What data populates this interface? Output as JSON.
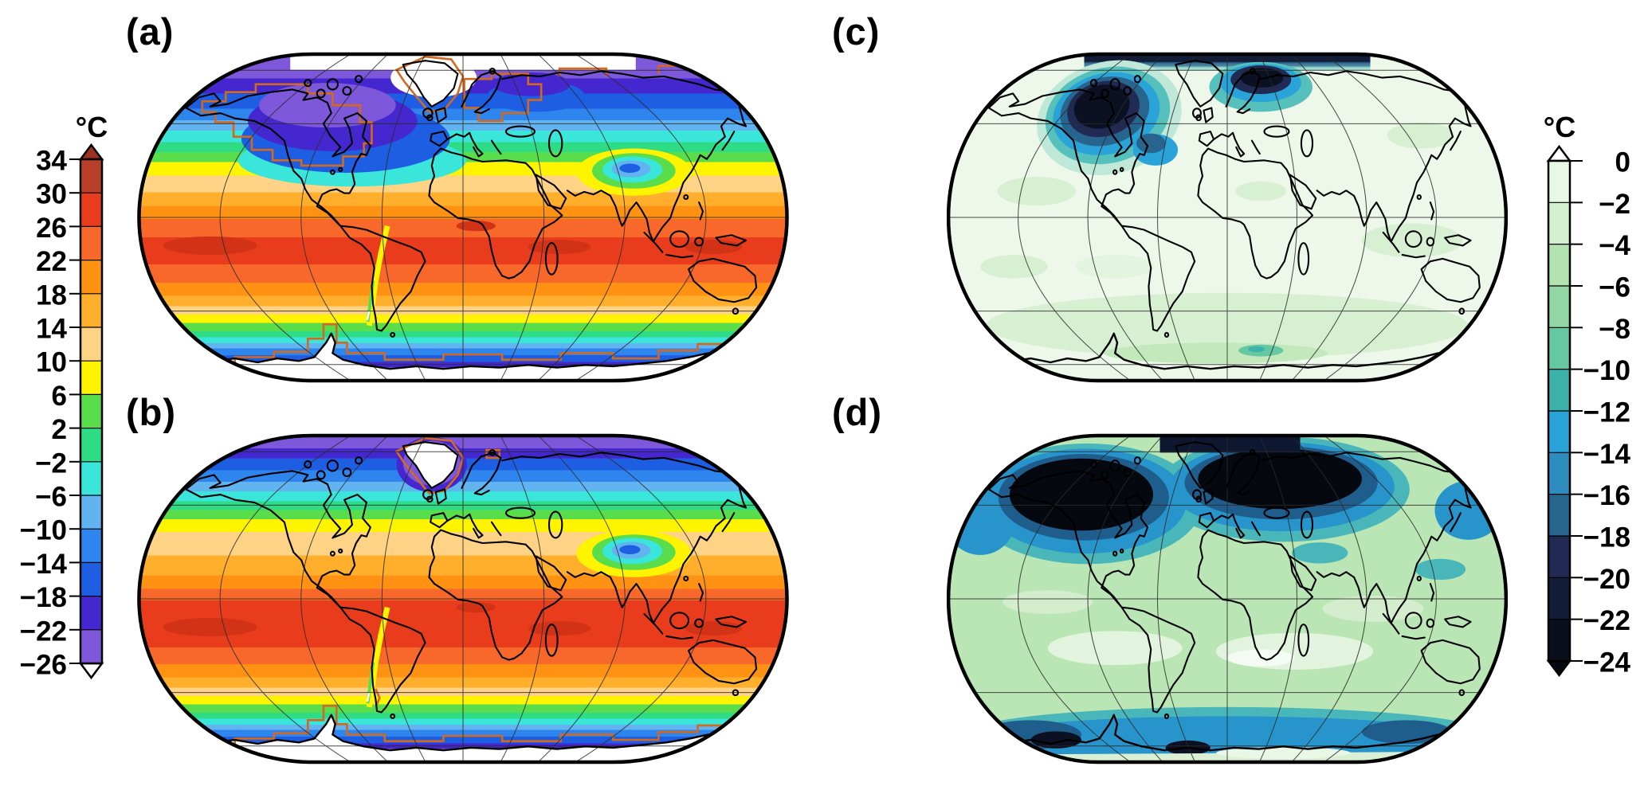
{
  "figure": {
    "background_color": "#ffffff",
    "ice_margin_contour_color": "#d2691e",
    "coastline_color": "#000000",
    "graticule_color": "#2b2b2b"
  },
  "panels": [
    {
      "id": "a",
      "label": "(a)"
    },
    {
      "id": "b",
      "label": "(b)"
    },
    {
      "id": "c",
      "label": "(c)"
    },
    {
      "id": "d",
      "label": "(d)"
    }
  ],
  "colorbar_left": {
    "title": "°C",
    "tick_labels": [
      "34",
      "30",
      "26",
      "22",
      "18",
      "14",
      "10",
      "6",
      "2",
      "−2",
      "−6",
      "−10",
      "−14",
      "−18",
      "−22",
      "−26"
    ],
    "segment_colors": [
      "#b8402a",
      "#e93c1d",
      "#f9682b",
      "#ff9113",
      "#ffaf2b",
      "#ffd386",
      "#fef400",
      "#59dd4b",
      "#2edc86",
      "#3ae5da",
      "#62b4f1",
      "#2f85ee",
      "#1d5ee2",
      "#4527cf",
      "#7e58da"
    ],
    "over_color": "#9d3220",
    "under_color": "#ffffff"
  },
  "colorbar_right": {
    "title": "°C",
    "tick_labels": [
      "0",
      "−2",
      "−4",
      "−6",
      "−8",
      "−10",
      "−12",
      "−14",
      "−16",
      "−18",
      "−20",
      "−22",
      "−24"
    ],
    "segment_colors": [
      "#e9f7e6",
      "#d3efcd",
      "#b3e3ae",
      "#92d7a4",
      "#66c8a3",
      "#3cb2aa",
      "#2aa3d8",
      "#2f8cbf",
      "#27648e",
      "#202a52",
      "#131d38",
      "#0a0f1d"
    ],
    "over_color": "#ffffff",
    "under_color": "#06080f"
  },
  "chart_data": [
    {
      "type": "heatmap",
      "panel": "(a)",
      "content": "global surface air temperature map, Robinson-style projection",
      "units": "°C",
      "scale_ticks": [
        34,
        30,
        26,
        22,
        18,
        14,
        10,
        6,
        2,
        -2,
        -6,
        -10,
        -14,
        -18,
        -22,
        -26
      ],
      "scale_range_shown": [
        -26,
        34
      ],
      "legend_position": "left",
      "notable_features": [
        "orange ice-margin contour over North America, Greenland, Scandinavia, Siberian coast and Antarctica",
        "white off-scale areas over Arctic, Greenland and Antarctic interior",
        "deep purple/blue cold belt across high northern latitudes",
        "cold cyan-blue pocket over the Tibetan Plateau",
        "yellow-green cool strip along the Andes",
        "red warm belt (26–30 °C and above) along the equator"
      ]
    },
    {
      "type": "heatmap",
      "panel": "(b)",
      "content": "global surface air temperature map, Robinson-style projection",
      "units": "°C",
      "scale_ticks": [
        34,
        30,
        26,
        22,
        18,
        14,
        10,
        6,
        2,
        -2,
        -6,
        -10,
        -14,
        -18,
        -22,
        -26
      ],
      "scale_range_shown": [
        -26,
        34
      ],
      "legend_position": "left",
      "notable_features": [
        "orange ice-margin contour only around Greenland and Antarctica",
        "high northern latitudes warmer than panel (a): green/yellow reach the Arctic coast",
        "purple cold cap restricted to Greenland and Arctic rim",
        "cold cyan-blue pocket over the Tibetan Plateau",
        "white Antarctic interior with purple fringe"
      ]
    },
    {
      "type": "heatmap",
      "panel": "(c)",
      "content": "surface air temperature difference map, Robinson-style projection",
      "units": "°C",
      "scale_ticks": [
        0,
        -2,
        -4,
        -6,
        -8,
        -10,
        -12,
        -14,
        -16,
        -18,
        -20,
        -22,
        -24
      ],
      "scale_range_shown": [
        -24,
        0
      ],
      "legend_position": "right",
      "notable_features": [
        "near-black cooling (< −20 °C) centered over Hudson Bay / Laurentide region",
        "dark cooling blob over Scandinavia / Barents Sea and along the Arctic rim",
        "weak cooling (0 to −4 °C, pale green) over most of the globe",
        "small cool teal patch in the Southern Ocean"
      ]
    },
    {
      "type": "heatmap",
      "panel": "(d)",
      "content": "surface air temperature difference map, Robinson-style projection",
      "units": "°C",
      "scale_ticks": [
        0,
        -2,
        -4,
        -6,
        -8,
        -10,
        -12,
        -14,
        -16,
        -18,
        -20,
        -22,
        -24
      ],
      "scale_range_shown": [
        -24,
        0
      ],
      "legend_position": "right",
      "notable_features": [
        "very large near-black cooling blobs over North America and northern Europe / Barents region",
        "blue cooling fringe across the whole high-latitude North Atlantic and North Pacific",
        "moderate cooling (−4 to −8 °C, green) background",
        "blue Southern Ocean cooling ring with dark spots near the Antarctic Peninsula and Ross Sea"
      ]
    }
  ]
}
